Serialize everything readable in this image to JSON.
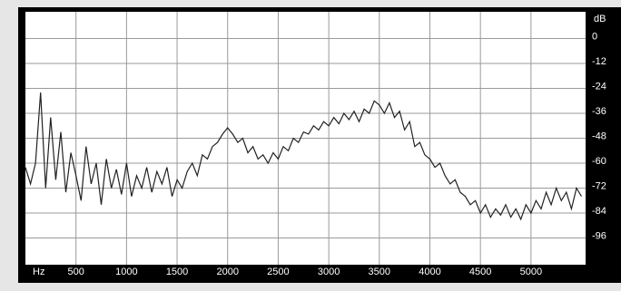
{
  "chart_data": {
    "type": "line",
    "x_label": "Hz",
    "y_label": "dB",
    "x": [
      0,
      50,
      100,
      150,
      200,
      250,
      300,
      350,
      400,
      450,
      500,
      550,
      600,
      650,
      700,
      750,
      800,
      850,
      900,
      950,
      1000,
      1050,
      1100,
      1150,
      1200,
      1250,
      1300,
      1350,
      1400,
      1450,
      1500,
      1550,
      1600,
      1650,
      1700,
      1750,
      1800,
      1850,
      1900,
      1950,
      2000,
      2050,
      2100,
      2150,
      2200,
      2250,
      2300,
      2350,
      2400,
      2450,
      2500,
      2550,
      2600,
      2650,
      2700,
      2750,
      2800,
      2850,
      2900,
      2950,
      3000,
      3050,
      3100,
      3150,
      3200,
      3250,
      3300,
      3350,
      3400,
      3450,
      3500,
      3550,
      3600,
      3650,
      3700,
      3750,
      3800,
      3850,
      3900,
      3950,
      4000,
      4050,
      4100,
      4150,
      4200,
      4250,
      4300,
      4350,
      4400,
      4450,
      4500,
      4550,
      4600,
      4650,
      4700,
      4750,
      4800,
      4850,
      4900,
      4950,
      5000,
      5050,
      5100,
      5150,
      5200,
      5250,
      5300,
      5350,
      5400,
      5450,
      5500
    ],
    "values": [
      -62,
      -70,
      -60,
      -26,
      -72,
      -38,
      -68,
      -45,
      -74,
      -55,
      -66,
      -78,
      -52,
      -70,
      -60,
      -80,
      -58,
      -72,
      -63,
      -75,
      -60,
      -76,
      -66,
      -72,
      -62,
      -74,
      -64,
      -70,
      -62,
      -76,
      -68,
      -72,
      -64,
      -60,
      -66,
      -56,
      -58,
      -52,
      -50,
      -46,
      -43,
      -46,
      -50,
      -48,
      -55,
      -52,
      -58,
      -56,
      -60,
      -55,
      -58,
      -52,
      -54,
      -48,
      -50,
      -45,
      -46,
      -42,
      -44,
      -40,
      -42,
      -38,
      -41,
      -36,
      -39,
      -35,
      -40,
      -34,
      -36,
      -30,
      -32,
      -36,
      -31,
      -38,
      -35,
      -44,
      -40,
      -52,
      -50,
      -56,
      -58,
      -62,
      -60,
      -66,
      -70,
      -68,
      -74,
      -76,
      -80,
      -78,
      -84,
      -80,
      -86,
      -82,
      -85,
      -80,
      -86,
      -82,
      -87,
      -80,
      -84,
      -78,
      -82,
      -74,
      -80,
      -72,
      -78,
      -74,
      -82,
      -72,
      -76
    ],
    "color": "#222222",
    "xlim": [
      0,
      5540
    ],
    "xticks": [
      500,
      1000,
      1500,
      2000,
      2500,
      3000,
      3500,
      4000,
      4500,
      5000
    ],
    "ylim": [
      -108,
      12
    ],
    "yticks": [
      0,
      -12,
      -24,
      -36,
      -48,
      -60,
      -72,
      -84,
      -96
    ],
    "grid": true
  }
}
